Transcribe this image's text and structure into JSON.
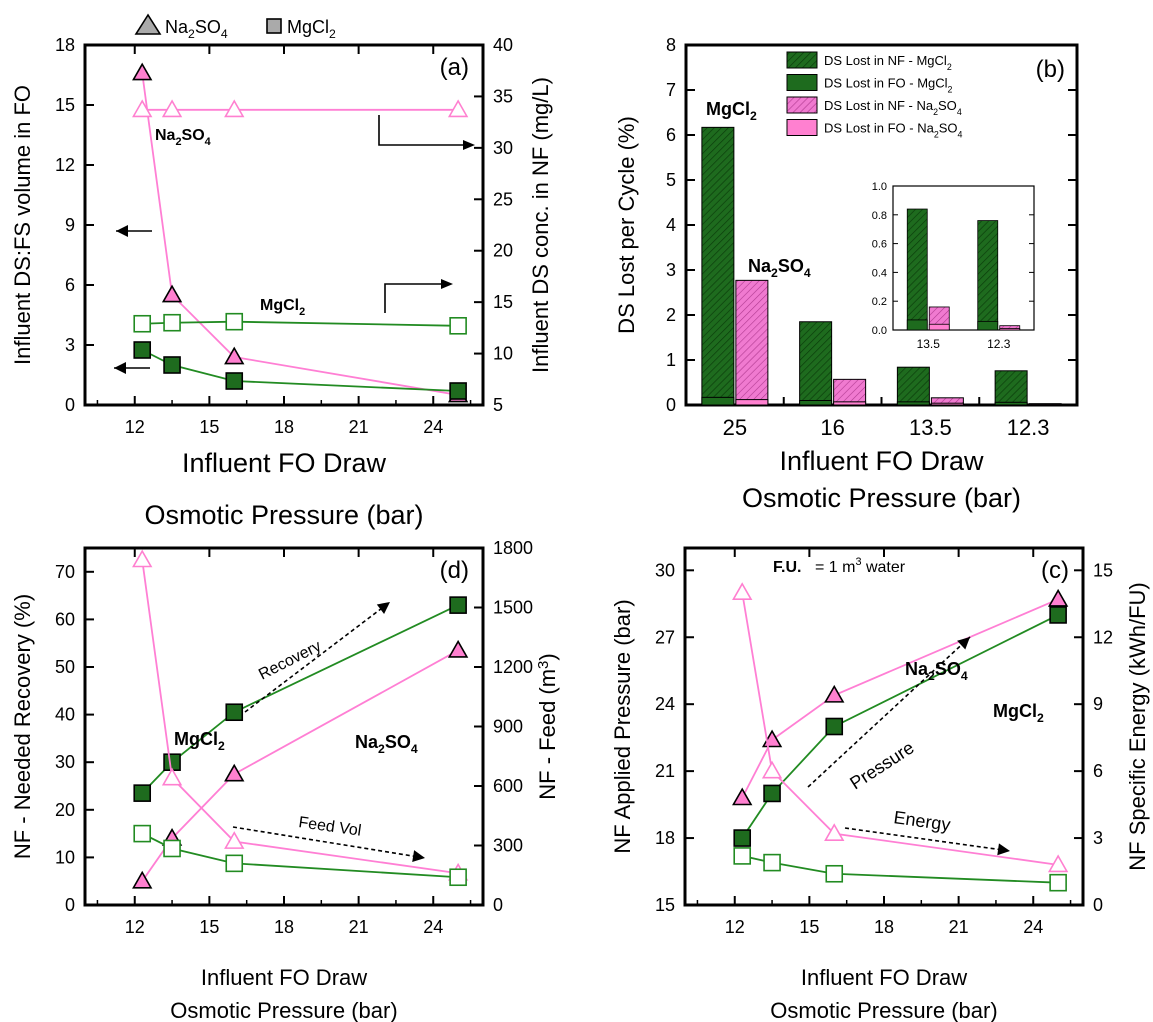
{
  "colors": {
    "mg": "#1e6b1e",
    "na": "#ff80d0",
    "mg_line": "#228b22",
    "na_line": "#ff7fd4"
  },
  "legend_top": {
    "na_label": "Na2SO4",
    "mg_label": "MgCl2"
  },
  "chart_data": [
    {
      "panel": "(a)",
      "type": "line",
      "xlabel": [
        "Influent FO Draw",
        "Osmotic Pressure  (bar)"
      ],
      "ylabel_left": "Influent DS:FS volume in FO",
      "ylabel_right": "Influent DS conc. in NF  (mg/L)",
      "xlim": [
        10,
        26
      ],
      "xticks": [
        "12",
        "15",
        "18",
        "21",
        "24"
      ],
      "ylim_left": [
        0,
        18
      ],
      "yticks_left": [
        "0",
        "3",
        "6",
        "9",
        "12",
        "15",
        "18"
      ],
      "ylim_right": [
        5,
        40
      ],
      "yticks_right": [
        "5",
        "10",
        "15",
        "20",
        "25",
        "30",
        "35",
        "40"
      ],
      "annotations": {
        "na": "Na2SO4",
        "mg": "MgCl2"
      },
      "series": [
        {
          "salt": "na",
          "axis": "left",
          "marker": "triangle",
          "filled": true,
          "x": [
            12.3,
            13.5,
            16,
            25
          ],
          "values": [
            16.6,
            5.5,
            2.4,
            0.5
          ]
        },
        {
          "salt": "na",
          "axis": "right",
          "marker": "triangle",
          "filled": false,
          "x": [
            12.3,
            13.5,
            16,
            25
          ],
          "values": [
            33.7,
            33.7,
            33.7,
            33.7
          ]
        },
        {
          "salt": "mg",
          "axis": "left",
          "marker": "square",
          "filled": true,
          "x": [
            12.3,
            13.5,
            16,
            25
          ],
          "values": [
            2.75,
            2.0,
            1.2,
            0.7
          ]
        },
        {
          "salt": "mg",
          "axis": "right",
          "marker": "square",
          "filled": false,
          "x": [
            12.3,
            13.5,
            16,
            25
          ],
          "values": [
            12.9,
            13.0,
            13.1,
            12.7
          ]
        }
      ]
    },
    {
      "panel": "(b)",
      "type": "bar",
      "xlabel": [
        "Influent FO Draw",
        "Osmotic Pressure  (bar)"
      ],
      "ylabel": "DS Lost per Cycle (%)",
      "categories": [
        "25",
        "16",
        "13.5",
        "12.3"
      ],
      "ylim": [
        0,
        8
      ],
      "yticks": [
        "0",
        "1",
        "2",
        "3",
        "4",
        "5",
        "6",
        "7",
        "8"
      ],
      "legend": [
        "DS Lost in NF - MgCl2",
        "DS Lost in FO - MgCl2",
        "DS Lost in NF - Na2SO4",
        "DS Lost in FO - Na2SO4"
      ],
      "annotations": {
        "mg": "MgCl2",
        "na": "Na2SO4"
      },
      "series": [
        {
          "salt": "mg",
          "part": "NF",
          "values": [
            6.0,
            1.75,
            0.77,
            0.7
          ]
        },
        {
          "salt": "mg",
          "part": "FO",
          "values": [
            0.17,
            0.1,
            0.07,
            0.06
          ]
        },
        {
          "salt": "na",
          "part": "NF",
          "values": [
            2.65,
            0.5,
            0.12,
            0.02
          ]
        },
        {
          "salt": "na",
          "part": "FO",
          "values": [
            0.12,
            0.07,
            0.04,
            0.01
          ]
        }
      ],
      "inset": {
        "categories": [
          "13.5",
          "12.3"
        ],
        "ylim": [
          0,
          1.0
        ],
        "yticks": [
          "0.0",
          "0.2",
          "0.4",
          "0.6",
          "0.8",
          "1.0"
        ]
      }
    },
    {
      "panel": "(d)",
      "type": "line",
      "xlabel": [
        "Influent FO Draw",
        "Osmotic Pressure  (bar)"
      ],
      "ylabel_left": "NF - Needed Recovery  (%)",
      "ylabel_right": "NF - Feed  (m3)",
      "xlim": [
        10,
        26
      ],
      "xticks": [
        "12",
        "15",
        "18",
        "21",
        "24"
      ],
      "ylim_left": [
        0,
        75
      ],
      "yticks_left": [
        "0",
        "10",
        "20",
        "30",
        "40",
        "50",
        "60",
        "70"
      ],
      "ylim_right": [
        0,
        1800
      ],
      "yticks_right": [
        "0",
        "300",
        "600",
        "900",
        "1200",
        "1500",
        "1800"
      ],
      "annotations": {
        "mg": "MgCl2",
        "na": "Na2SO4",
        "arrow1": "Recovery",
        "arrow2": "Feed Vol"
      },
      "series": [
        {
          "salt": "na",
          "axis": "left",
          "marker": "triangle",
          "filled": true,
          "x": [
            12.3,
            13.5,
            16,
            25
          ],
          "values": [
            5,
            14,
            27.5,
            53.5
          ]
        },
        {
          "salt": "mg",
          "axis": "left",
          "marker": "square",
          "filled": true,
          "x": [
            12.3,
            13.5,
            16,
            25
          ],
          "values": [
            23.5,
            30,
            40.5,
            63
          ]
        },
        {
          "salt": "na",
          "axis": "right",
          "marker": "triangle",
          "filled": false,
          "x": [
            12.3,
            13.5,
            16,
            25
          ],
          "values": [
            1740,
            640,
            320,
            160
          ]
        },
        {
          "salt": "mg",
          "axis": "right",
          "marker": "square",
          "filled": false,
          "x": [
            12.3,
            13.5,
            16,
            25
          ],
          "values": [
            360,
            285,
            210,
            140
          ]
        }
      ]
    },
    {
      "panel": "(c)",
      "type": "line",
      "xlabel": [
        "Influent FO Draw",
        "Osmotic Pressure  (bar)"
      ],
      "ylabel_left": "NF Applied Pressure  (bar)",
      "ylabel_right": "NF Specific Energy  (kWh/FU)",
      "xlim": [
        10,
        26
      ],
      "xticks": [
        "12",
        "15",
        "18",
        "21",
        "24"
      ],
      "ylim_left": [
        15,
        31
      ],
      "yticks_left": [
        "15",
        "18",
        "21",
        "24",
        "27",
        "30"
      ],
      "ylim_right": [
        0,
        16
      ],
      "yticks_right": [
        "0",
        "3",
        "6",
        "9",
        "12",
        "15"
      ],
      "annotations": {
        "fu_bold": "F.U.",
        "fu_rest": " = 1 m3 water",
        "na": "Na2SO4",
        "mg": "MgCl2",
        "arrow1": "Pressure",
        "arrow2": "Energy"
      },
      "series": [
        {
          "salt": "na",
          "axis": "left",
          "marker": "triangle",
          "filled": true,
          "x": [
            12.3,
            13.5,
            16,
            25
          ],
          "values": [
            19.8,
            22.4,
            24.4,
            28.7
          ]
        },
        {
          "salt": "mg",
          "axis": "left",
          "marker": "square",
          "filled": true,
          "x": [
            12.3,
            13.5,
            16,
            25
          ],
          "values": [
            18.0,
            20.0,
            23.0,
            28.0
          ]
        },
        {
          "salt": "na",
          "axis": "right",
          "marker": "triangle",
          "filled": false,
          "x": [
            12.3,
            13.5,
            16,
            25
          ],
          "values": [
            14.0,
            6.0,
            3.2,
            1.8
          ]
        },
        {
          "salt": "mg",
          "axis": "right",
          "marker": "square",
          "filled": false,
          "x": [
            12.3,
            13.5,
            16,
            25
          ],
          "values": [
            2.2,
            1.9,
            1.4,
            1.0
          ]
        }
      ]
    }
  ]
}
